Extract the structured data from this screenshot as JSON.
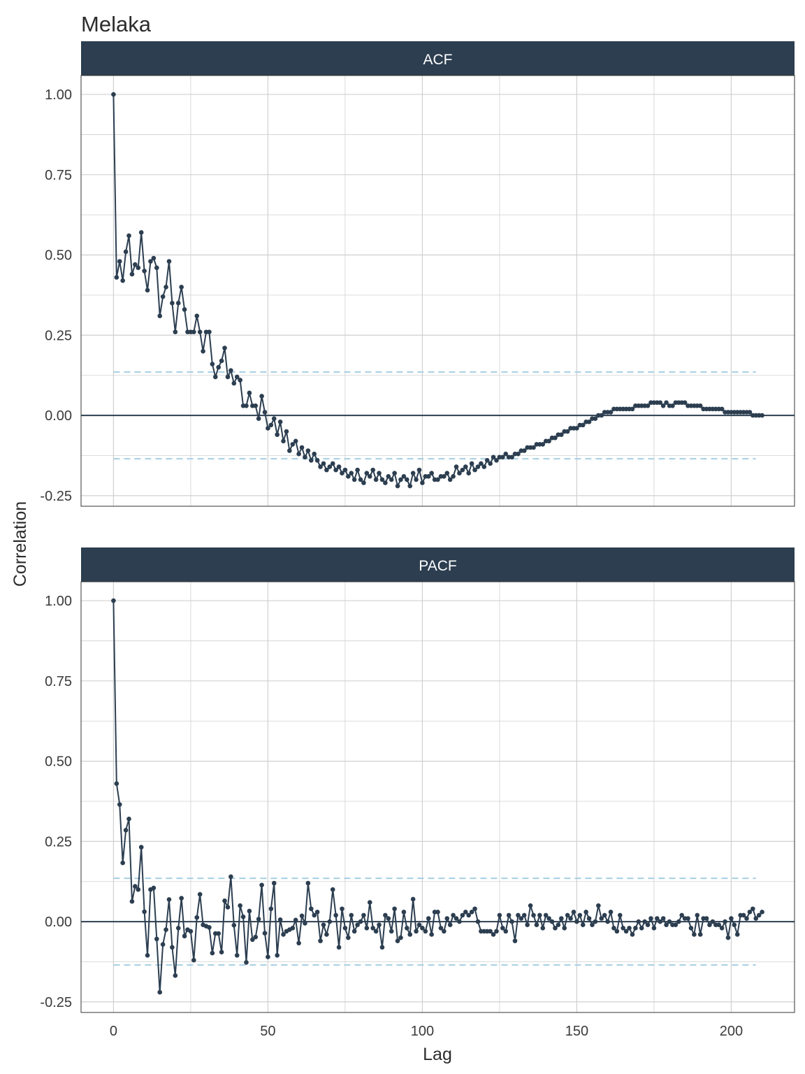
{
  "title": "Melaka",
  "colors": {
    "line": "#2c3e50",
    "strip": "#2c3e50",
    "bounds": "#a6cee3",
    "grid": "#d0d0d0"
  },
  "chart_data": [
    {
      "type": "line",
      "panel": "ACF",
      "xlabel": "Lag",
      "ylabel": "Correlation",
      "xlim": [
        -10.5,
        220.5
      ],
      "ylim": [
        -0.283,
        1.059
      ],
      "x_ticks": [
        0,
        50,
        100,
        150,
        200
      ],
      "y_ticks": [
        "1.00",
        "0.75",
        "0.50",
        "0.25",
        "0.00",
        "-0.25"
      ],
      "grid": true,
      "confidence_bound": 0.135,
      "lag_start": 0,
      "values": [
        1.0,
        0.43,
        0.48,
        0.42,
        0.51,
        0.56,
        0.44,
        0.47,
        0.46,
        0.57,
        0.45,
        0.39,
        0.48,
        0.49,
        0.46,
        0.31,
        0.37,
        0.4,
        0.48,
        0.35,
        0.26,
        0.35,
        0.4,
        0.33,
        0.26,
        0.26,
        0.26,
        0.31,
        0.26,
        0.2,
        0.26,
        0.26,
        0.16,
        0.12,
        0.15,
        0.17,
        0.21,
        0.12,
        0.14,
        0.1,
        0.12,
        0.11,
        0.03,
        0.03,
        0.07,
        0.03,
        0.03,
        -0.01,
        0.06,
        0.01,
        -0.04,
        -0.03,
        -0.01,
        -0.06,
        -0.02,
        -0.08,
        -0.05,
        -0.11,
        -0.09,
        -0.08,
        -0.12,
        -0.1,
        -0.13,
        -0.11,
        -0.14,
        -0.12,
        -0.14,
        -0.16,
        -0.15,
        -0.17,
        -0.16,
        -0.15,
        -0.17,
        -0.16,
        -0.18,
        -0.17,
        -0.19,
        -0.18,
        -0.2,
        -0.17,
        -0.2,
        -0.21,
        -0.18,
        -0.19,
        -0.17,
        -0.2,
        -0.18,
        -0.2,
        -0.21,
        -0.19,
        -0.2,
        -0.18,
        -0.22,
        -0.2,
        -0.19,
        -0.2,
        -0.22,
        -0.18,
        -0.2,
        -0.17,
        -0.21,
        -0.19,
        -0.19,
        -0.18,
        -0.2,
        -0.2,
        -0.19,
        -0.19,
        -0.18,
        -0.2,
        -0.19,
        -0.16,
        -0.18,
        -0.17,
        -0.16,
        -0.18,
        -0.15,
        -0.17,
        -0.16,
        -0.15,
        -0.16,
        -0.14,
        -0.15,
        -0.13,
        -0.14,
        -0.13,
        -0.13,
        -0.12,
        -0.13,
        -0.13,
        -0.12,
        -0.12,
        -0.11,
        -0.11,
        -0.1,
        -0.1,
        -0.1,
        -0.09,
        -0.09,
        -0.09,
        -0.08,
        -0.08,
        -0.07,
        -0.07,
        -0.06,
        -0.06,
        -0.05,
        -0.05,
        -0.04,
        -0.04,
        -0.04,
        -0.03,
        -0.03,
        -0.02,
        -0.02,
        -0.01,
        -0.01,
        0.0,
        0.0,
        0.01,
        0.01,
        0.01,
        0.02,
        0.02,
        0.02,
        0.02,
        0.02,
        0.02,
        0.02,
        0.03,
        0.03,
        0.03,
        0.03,
        0.03,
        0.04,
        0.04,
        0.04,
        0.04,
        0.03,
        0.04,
        0.03,
        0.03,
        0.04,
        0.04,
        0.04,
        0.04,
        0.03,
        0.03,
        0.03,
        0.03,
        0.03,
        0.02,
        0.02,
        0.02,
        0.02,
        0.02,
        0.02,
        0.02,
        0.01,
        0.01,
        0.01,
        0.01,
        0.01,
        0.01,
        0.01,
        0.01,
        0.01,
        0.0,
        0.0,
        0.0,
        0.0
      ]
    },
    {
      "type": "line",
      "panel": "PACF",
      "xlabel": "Lag",
      "ylabel": "Correlation",
      "xlim": [
        -10.5,
        220.5
      ],
      "ylim": [
        -0.283,
        1.059
      ],
      "x_ticks": [
        0,
        50,
        100,
        150,
        200
      ],
      "y_ticks": [
        "1.00",
        "0.75",
        "0.50",
        "0.25",
        "0.00",
        "-0.25"
      ],
      "grid": true,
      "confidence_bound": 0.135,
      "lag_start": 0,
      "values": [
        1.0,
        0.43,
        0.365,
        0.183,
        0.285,
        0.32,
        0.063,
        0.11,
        0.1,
        0.232,
        0.031,
        -0.105,
        0.1,
        0.105,
        -0.054,
        -0.22,
        -0.071,
        -0.025,
        0.069,
        -0.08,
        -0.168,
        -0.02,
        0.073,
        -0.045,
        -0.025,
        -0.03,
        -0.12,
        0.013,
        0.085,
        -0.01,
        -0.014,
        -0.018,
        -0.098,
        -0.037,
        -0.037,
        -0.095,
        0.065,
        0.045,
        0.14,
        -0.011,
        -0.105,
        0.05,
        0.015,
        -0.127,
        0.033,
        -0.056,
        -0.048,
        0.008,
        0.114,
        -0.036,
        -0.11,
        0.04,
        0.12,
        -0.105,
        0.006,
        -0.04,
        -0.03,
        -0.025,
        -0.02,
        0.005,
        -0.067,
        0.018,
        -0.005,
        0.12,
        0.04,
        0.02,
        0.03,
        -0.06,
        -0.01,
        -0.04,
        0.0,
        0.1,
        0.02,
        -0.08,
        0.04,
        -0.02,
        -0.05,
        0.02,
        -0.03,
        -0.01,
        0.0,
        0.02,
        -0.02,
        0.06,
        -0.02,
        -0.03,
        -0.01,
        -0.08,
        0.02,
        0.01,
        -0.03,
        0.04,
        -0.06,
        -0.05,
        0.03,
        -0.02,
        -0.04,
        0.07,
        -0.03,
        -0.01,
        -0.02,
        -0.03,
        0.01,
        -0.04,
        0.03,
        0.03,
        -0.02,
        -0.03,
        0.01,
        -0.01,
        0.02,
        0.01,
        0.0,
        0.02,
        0.03,
        0.02,
        0.03,
        0.04,
        0.0,
        -0.03,
        -0.03,
        -0.03,
        -0.03,
        -0.04,
        -0.03,
        0.02,
        -0.02,
        -0.03,
        0.02,
        0.0,
        -0.06,
        0.02,
        0.01,
        0.02,
        -0.01,
        0.05,
        0.02,
        -0.01,
        0.02,
        -0.02,
        0.02,
        0.01,
        0.0,
        -0.02,
        -0.01,
        0.01,
        -0.02,
        0.02,
        0.01,
        0.03,
        0.0,
        0.02,
        -0.01,
        0.03,
        0.01,
        -0.01,
        0.0,
        0.05,
        0.01,
        0.02,
        0.0,
        0.03,
        -0.02,
        -0.03,
        0.02,
        -0.02,
        -0.03,
        -0.02,
        -0.04,
        -0.02,
        0.0,
        -0.02,
        0.0,
        -0.01,
        0.01,
        -0.02,
        0.01,
        0.0,
        0.01,
        -0.01,
        0.0,
        -0.01,
        -0.01,
        0.0,
        0.02,
        0.01,
        0.01,
        -0.02,
        -0.04,
        0.02,
        -0.04,
        0.01,
        0.01,
        -0.01,
        0.0,
        -0.01,
        -0.01,
        -0.02,
        0.0,
        -0.05,
        0.01,
        -0.01,
        -0.04,
        0.02,
        0.02,
        0.01,
        0.03,
        0.04,
        0.01,
        0.02,
        0.03
      ]
    }
  ]
}
